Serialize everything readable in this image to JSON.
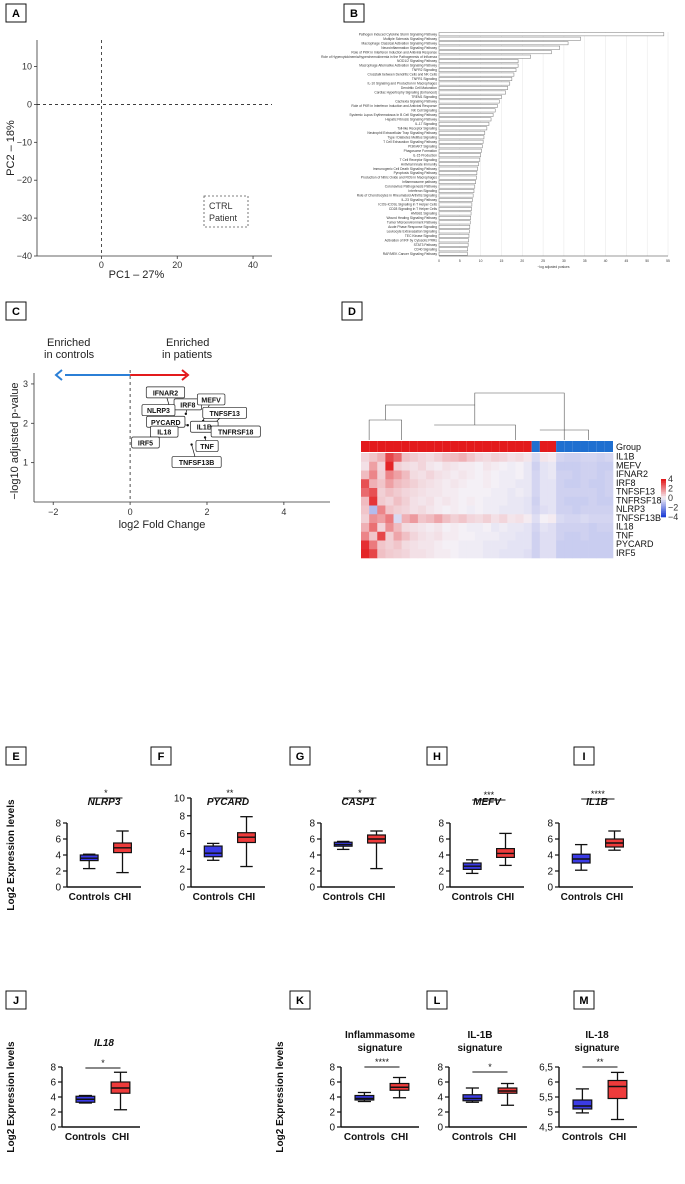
{
  "colors": {
    "control_box": "#3b3be6",
    "chi_box": "#ee3b3b",
    "heat_high": "#e31a1c",
    "heat_low": "#1f3fd6",
    "heat_mid": "#f4f0f6",
    "group_ctrl": "#1f6fd0",
    "group_patient": "#e31a1c",
    "arrow_blue": "#2b7fd6",
    "arrow_red": "#e31a1c"
  },
  "chart_data": [
    {
      "panel": "A",
      "type": "scatter",
      "xlabel": "PC1 – 27%",
      "ylabel": "PC2 – 18%",
      "xlim": [
        -17,
        45
      ],
      "ylim": [
        -40,
        17
      ],
      "xticks": [
        "0",
        "20",
        "40"
      ],
      "xtick_values": [
        0,
        20,
        40
      ],
      "yticks": [
        "10",
        "0",
        "−10",
        "−20",
        "−30",
        "−40"
      ],
      "ytick_values": [
        10,
        0,
        -10,
        -20,
        -30,
        -40
      ],
      "legend": [
        "CTRL",
        "Patient"
      ],
      "legend_position": "bottom-right",
      "points": []
    },
    {
      "panel": "B",
      "type": "bar",
      "orientation": "horizontal",
      "xlabel": "−log adjusted pvalues",
      "xlim": [
        0,
        55
      ],
      "xticks": [
        "0",
        "5",
        "10",
        "15",
        "20",
        "25",
        "30",
        "35",
        "40",
        "45",
        "50",
        "55"
      ],
      "categories": [
        "Pathogen Induced Cytokine Storm Signaling Pathway",
        "Multiple Sclerosis Signaling Pathway",
        "Macrophage Classical Activation Signaling Pathway",
        "Neuroinflammation Signaling Pathway",
        "Role of PKR in Interferon Induction and Antiviral Response",
        "Role of Hypercytokinemia/hyperchemokinemia in the Pathogenesis of Influenza",
        "NOD1/2 Signaling Pathway",
        "Macrophage Alternative Activation Signaling Pathway",
        "TNFR2 Signaling",
        "Crosstalk between Dendritic Cells and NK Cells",
        "TNFR1 Signaling",
        "IL-10 Signaling and Production in Macrophages",
        "Dendritic Cell Maturation",
        "Cardiac Hypertrophy Signaling (Enhanced)",
        "TREM1 Signaling",
        "Cachexia Signaling Pathway",
        "Role of PKR in Interferon Induction and Antiviral Response",
        "NK Cell Signaling",
        "Systemic Lupus Erythematosus In B Cell Signaling Pathway",
        "Hepatic Fibrosis Signaling Pathway",
        "IL-17 Signaling",
        "Toll-like Receptor Signaling",
        "Neutrophil Extracellular Trap Signaling Pathway",
        "Type I Diabetes Mellitus Signaling",
        "T Cell Exhaustion Signaling Pathway",
        "PI3K/AKT Signaling",
        "Phagosome Formation",
        "IL-15 Production",
        "T Cell Receptor Signaling",
        "Antiviral Innate Immunity",
        "Immunogenic Cell Death Signaling Pathway",
        "Pyroptosis Signaling Pathway",
        "Production of Nitric Oxide and ROS in Macrophages",
        "Inflammasome pathway",
        "Coronavirus Pathogenesis Pathway",
        "Interferon Signaling",
        "Role of Chondrocytes in Rheumatoid Arthritis Signaling",
        "IL-23 Signaling Pathway",
        "ICOS-ICOSL Signaling in T Helper Cells",
        "CD28 Signaling in T Helper Cells",
        "HMGB1 Signaling",
        "Wound Healing Signaling Pathway",
        "Tumor Microenvironment Pathway",
        "Acute Phase Response Signaling",
        "Leukocyte Extravasation Signaling",
        "TEC Kinase Signaling",
        "Activation of IRF by Cytosolic PRRs",
        "STAT3 Pathway",
        "CD40 Signaling",
        "RAF/MEK Cancer Signaling Pathway"
      ],
      "values": [
        54,
        34,
        31,
        29,
        27,
        22,
        19,
        19,
        18.5,
        18,
        17.5,
        17,
        16.5,
        16,
        15,
        14.5,
        14,
        13.5,
        13,
        12.5,
        12,
        11.5,
        11,
        10.8,
        10.6,
        10.4,
        10.2,
        10,
        9.8,
        9.5,
        9.3,
        9.1,
        9,
        8.8,
        8.6,
        8.4,
        8.2,
        8,
        7.9,
        7.8,
        7.7,
        7.6,
        7.5,
        7.4,
        7.3,
        7.2,
        7.1,
        7,
        6.9,
        6.8
      ]
    },
    {
      "panel": "C",
      "type": "scatter",
      "xlabel": "log2 Fold Change",
      "ylabel": "−log10 adjusted p-value",
      "xlim": [
        -2.5,
        5.2
      ],
      "ylim": [
        0,
        3.1
      ],
      "xticks": [
        "−2",
        "0",
        "2",
        "4"
      ],
      "xtick_values": [
        -2,
        0,
        2,
        4
      ],
      "yticks": [
        "1",
        "2",
        "3"
      ],
      "ytick_values": [
        1,
        2,
        3
      ],
      "annotation_left": "Enriched in controls",
      "annotation_right": "Enriched in patients",
      "points": [
        {
          "label": "IFNAR2",
          "x": 1.05,
          "y": 2.34
        },
        {
          "label": "IRF8",
          "x": 1.45,
          "y": 2.24
        },
        {
          "label": "MEFV",
          "x": 1.9,
          "y": 2.06
        },
        {
          "label": "NLRP3",
          "x": 1.05,
          "y": 2.12
        },
        {
          "label": "TNFSF13",
          "x": 2.2,
          "y": 2.0
        },
        {
          "label": "PYCARD",
          "x": 1.5,
          "y": 1.95
        },
        {
          "label": "IL1B",
          "x": 1.8,
          "y": 1.9
        },
        {
          "label": "TNFRSF18",
          "x": 2.8,
          "y": 1.88
        },
        {
          "label": "IL18",
          "x": 1.2,
          "y": 1.7
        },
        {
          "label": "TNF",
          "x": 1.95,
          "y": 1.64
        },
        {
          "label": "IRF5",
          "x": 0.4,
          "y": 1.5
        },
        {
          "label": "TNFSF13B",
          "x": 1.6,
          "y": 1.46
        }
      ]
    },
    {
      "panel": "D",
      "type": "heatmap",
      "rows": [
        "IL1B",
        "MEFV",
        "IFNAR2",
        "IRF8",
        "TNFSF13",
        "TNFRSF18",
        "NLRP3",
        "TNFSF13B",
        "IL18",
        "TNF",
        "PYCARD",
        "IRF5"
      ],
      "group_label": "Group",
      "groups": [
        "Patient",
        "Patient",
        "Patient",
        "Patient",
        "Patient",
        "Patient",
        "Patient",
        "Patient",
        "Patient",
        "Patient",
        "Patient",
        "Patient",
        "Patient",
        "Patient",
        "Patient",
        "Patient",
        "Patient",
        "Patient",
        "Patient",
        "Patient",
        "Patient",
        "CTRL",
        "Patient",
        "Patient",
        "CTRL",
        "CTRL",
        "CTRL",
        "CTRL",
        "CTRL",
        "CTRL",
        "CTRL"
      ],
      "scale_ticks": [
        "4",
        "2",
        "0",
        "−2",
        "−4"
      ],
      "scale_values": [
        4,
        2,
        0,
        -2,
        -4
      ],
      "values": [
        [
          0.5,
          0.8,
          1.2,
          3.2,
          2.5,
          0.9,
          0.7,
          0.5,
          0.4,
          0.6,
          0.9,
          1.0,
          1.2,
          0.8,
          0.5,
          0.4,
          0.6,
          0.5,
          0.3,
          0.4,
          0.2,
          -0.5,
          0.2,
          0.1,
          -0.6,
          -0.7,
          -0.7,
          -0.6,
          -0.6,
          -0.7,
          -0.6
        ],
        [
          0.3,
          1.5,
          0.5,
          3.8,
          0.6,
          0.4,
          0.3,
          0.5,
          0.2,
          0.1,
          0.3,
          0.2,
          0.1,
          0.1,
          0.0,
          0.2,
          0.1,
          0.0,
          -0.1,
          0.0,
          -0.2,
          -0.7,
          -0.3,
          -0.2,
          -0.8,
          -0.8,
          -0.8,
          -0.7,
          -0.7,
          -0.8,
          -0.8
        ],
        [
          1.0,
          2.0,
          0.6,
          2.0,
          1.5,
          1.0,
          0.4,
          0.3,
          0.5,
          0.3,
          0.2,
          0.1,
          0.2,
          0.1,
          0.0,
          0.1,
          0.0,
          -0.1,
          -0.1,
          0.0,
          -0.2,
          -0.6,
          -0.3,
          -0.2,
          -0.7,
          -0.7,
          -0.8,
          -0.7,
          -0.7,
          -0.8,
          -0.7
        ],
        [
          3.0,
          1.2,
          0.8,
          1.5,
          1.0,
          0.8,
          0.6,
          0.4,
          0.3,
          0.2,
          0.1,
          0.2,
          0.1,
          0.0,
          0.0,
          0.1,
          0.0,
          -0.1,
          -0.1,
          -0.2,
          -0.2,
          -0.6,
          -0.3,
          -0.3,
          -0.7,
          -0.8,
          -0.8,
          -0.7,
          -0.8,
          -0.8,
          -0.7
        ],
        [
          2.5,
          3.0,
          0.6,
          0.9,
          0.7,
          0.5,
          0.4,
          0.3,
          0.2,
          0.2,
          0.1,
          0.1,
          0.0,
          0.0,
          0.0,
          0.0,
          -0.1,
          -0.1,
          -0.2,
          -0.1,
          -0.2,
          -0.6,
          -0.3,
          -0.3,
          -0.7,
          -0.7,
          -0.7,
          -0.7,
          -0.7,
          -0.8,
          -0.7
        ],
        [
          1.0,
          3.5,
          0.7,
          0.5,
          0.9,
          0.6,
          0.3,
          0.2,
          0.3,
          0.1,
          0.2,
          0.1,
          0.0,
          0.1,
          0.0,
          -0.1,
          -0.1,
          -0.1,
          -0.2,
          -0.2,
          -0.3,
          -0.7,
          -0.3,
          -0.3,
          -0.7,
          -0.8,
          -0.8,
          -0.8,
          -0.7,
          -0.8,
          -0.8
        ],
        [
          0.8,
          -1.2,
          2.0,
          0.8,
          0.6,
          0.5,
          0.3,
          0.4,
          0.2,
          0.1,
          0.0,
          0.1,
          0.0,
          -0.1,
          0.0,
          -0.1,
          -0.1,
          -0.2,
          -0.2,
          -0.2,
          -0.3,
          -0.6,
          -0.4,
          -0.3,
          -0.7,
          -0.7,
          -0.8,
          -0.7,
          -0.7,
          -0.7,
          -0.7
        ],
        [
          0.6,
          1.8,
          1.5,
          2.2,
          -0.5,
          1.2,
          1.6,
          0.8,
          1.0,
          1.4,
          0.9,
          0.6,
          0.8,
          0.5,
          0.4,
          0.6,
          0.3,
          0.5,
          0.2,
          0.3,
          0.1,
          -0.4,
          0.0,
          0.1,
          -0.5,
          -0.6,
          -0.6,
          -0.5,
          -0.6,
          -0.6,
          -0.6
        ],
        [
          1.2,
          2.4,
          0.5,
          1.8,
          1.0,
          0.4,
          0.3,
          0.2,
          0.1,
          0.2,
          0.0,
          0.1,
          0.0,
          -0.1,
          -0.1,
          0.0,
          -0.2,
          -0.1,
          -0.2,
          -0.2,
          -0.3,
          -0.6,
          -0.3,
          -0.4,
          -0.7,
          -0.7,
          -0.7,
          -0.7,
          -0.8,
          -0.7,
          -0.7
        ],
        [
          2.0,
          0.8,
          3.2,
          0.6,
          1.4,
          0.9,
          0.5,
          0.3,
          0.2,
          0.3,
          0.1,
          0.1,
          0.0,
          0.0,
          -0.1,
          -0.1,
          -0.1,
          -0.2,
          -0.2,
          -0.3,
          -0.3,
          -0.7,
          -0.4,
          -0.4,
          -0.7,
          -0.8,
          -0.8,
          -0.7,
          -0.8,
          -0.8,
          -0.8
        ],
        [
          3.6,
          2.2,
          0.8,
          0.6,
          0.8,
          0.4,
          0.3,
          0.2,
          0.2,
          0.1,
          0.0,
          0.0,
          -0.1,
          -0.1,
          -0.1,
          -0.2,
          -0.2,
          -0.2,
          -0.3,
          -0.3,
          -0.3,
          -0.7,
          -0.4,
          -0.4,
          -0.8,
          -0.8,
          -0.8,
          -0.8,
          -0.8,
          -0.8,
          -0.8
        ],
        [
          3.8,
          3.2,
          0.9,
          0.7,
          0.6,
          0.5,
          0.3,
          0.3,
          0.2,
          0.1,
          0.1,
          0.0,
          -0.1,
          -0.1,
          -0.1,
          -0.2,
          -0.2,
          -0.3,
          -0.3,
          -0.3,
          -0.4,
          -0.7,
          -0.4,
          -0.4,
          -0.8,
          -0.8,
          -0.8,
          -0.8,
          -0.8,
          -0.8,
          -0.8
        ]
      ]
    },
    {
      "panel": "E",
      "type": "box",
      "title": "NLRP3",
      "ylabel": "Log2 Expression levels",
      "categories": [
        "Controls",
        "CHI"
      ],
      "ylim": [
        0,
        8
      ],
      "yticks": [
        "0",
        "2",
        "4",
        "6",
        "8"
      ],
      "ytick_values": [
        0,
        2,
        4,
        6,
        8
      ],
      "boxes": [
        {
          "min": 2.3,
          "q1": 3.3,
          "median": 3.6,
          "q3": 4.0,
          "max": 4.1
        },
        {
          "min": 1.8,
          "q1": 4.3,
          "median": 4.9,
          "q3": 5.5,
          "max": 7.0
        }
      ],
      "significance": "*"
    },
    {
      "panel": "F",
      "type": "box",
      "title": "PYCARD",
      "ylabel": "",
      "categories": [
        "Controls",
        "CHI"
      ],
      "ylim": [
        0,
        10
      ],
      "yticks": [
        "0",
        "2",
        "4",
        "6",
        "8",
        "10"
      ],
      "ytick_values": [
        0,
        2,
        4,
        6,
        8,
        10
      ],
      "boxes": [
        {
          "min": 3.0,
          "q1": 3.4,
          "median": 3.8,
          "q3": 4.6,
          "max": 4.9
        },
        {
          "min": 2.3,
          "q1": 5.0,
          "median": 5.6,
          "q3": 6.1,
          "max": 7.9
        }
      ],
      "significance": "**"
    },
    {
      "panel": "G",
      "type": "box",
      "title": "CASP1",
      "ylabel": "",
      "categories": [
        "Controls",
        "CHI"
      ],
      "ylim": [
        0,
        8
      ],
      "yticks": [
        "0",
        "2",
        "4",
        "6",
        "8"
      ],
      "ytick_values": [
        0,
        2,
        4,
        6,
        8
      ],
      "boxes": [
        {
          "min": 4.7,
          "q1": 5.1,
          "median": 5.3,
          "q3": 5.6,
          "max": 5.7
        },
        {
          "min": 2.3,
          "q1": 5.5,
          "median": 6.0,
          "q3": 6.5,
          "max": 7.0
        }
      ],
      "significance": "*"
    },
    {
      "panel": "H",
      "type": "box",
      "title": "MEFV",
      "ylabel": "",
      "categories": [
        "Controls",
        "CHI"
      ],
      "ylim": [
        0,
        8
      ],
      "yticks": [
        "0",
        "2",
        "4",
        "6",
        "8"
      ],
      "ytick_values": [
        0,
        2,
        4,
        6,
        8
      ],
      "boxes": [
        {
          "min": 1.7,
          "q1": 2.2,
          "median": 2.6,
          "q3": 3.0,
          "max": 3.4
        },
        {
          "min": 2.7,
          "q1": 3.7,
          "median": 4.2,
          "q3": 4.8,
          "max": 6.7
        }
      ],
      "significance": "***"
    },
    {
      "panel": "I",
      "type": "box",
      "title": "IL1B",
      "ylabel": "",
      "categories": [
        "Controls",
        "CHI"
      ],
      "ylim": [
        0,
        8
      ],
      "yticks": [
        "0",
        "2",
        "4",
        "6",
        "8"
      ],
      "ytick_values": [
        0,
        2,
        4,
        6,
        8
      ],
      "boxes": [
        {
          "min": 2.1,
          "q1": 3.0,
          "median": 3.5,
          "q3": 4.1,
          "max": 5.3
        },
        {
          "min": 4.6,
          "q1": 5.0,
          "median": 5.5,
          "q3": 6.0,
          "max": 7.0
        }
      ],
      "significance": "****"
    },
    {
      "panel": "J",
      "type": "box",
      "title": "IL18",
      "ylabel": "Log2 Expression levels",
      "categories": [
        "Controls",
        "CHI"
      ],
      "ylim": [
        0,
        8
      ],
      "yticks": [
        "0",
        "2",
        "4",
        "6",
        "8"
      ],
      "ytick_values": [
        0,
        2,
        4,
        6,
        8
      ],
      "boxes": [
        {
          "min": 3.2,
          "q1": 3.3,
          "median": 3.7,
          "q3": 4.1,
          "max": 4.2
        },
        {
          "min": 2.3,
          "q1": 4.5,
          "median": 5.2,
          "q3": 6.0,
          "max": 7.3
        }
      ],
      "significance": "*"
    },
    {
      "panel": "K",
      "type": "box",
      "title": "Inflammasome signature",
      "ylabel": "Log2 Expression levels",
      "categories": [
        "Controls",
        "CHI"
      ],
      "ylim": [
        0,
        8
      ],
      "yticks": [
        "0",
        "2",
        "4",
        "6",
        "8"
      ],
      "ytick_values": [
        0,
        2,
        4,
        6,
        8
      ],
      "boxes": [
        {
          "min": 3.4,
          "q1": 3.6,
          "median": 3.8,
          "q3": 4.2,
          "max": 4.6
        },
        {
          "min": 3.9,
          "q1": 4.9,
          "median": 5.3,
          "q3": 5.8,
          "max": 6.6
        }
      ],
      "significance": "****"
    },
    {
      "panel": "L",
      "type": "box",
      "title": "IL-1B signature",
      "ylabel": "",
      "categories": [
        "Controls",
        "CHI"
      ],
      "ylim": [
        0,
        8
      ],
      "yticks": [
        "0",
        "2",
        "4",
        "6",
        "8"
      ],
      "ytick_values": [
        0,
        2,
        4,
        6,
        8
      ],
      "boxes": [
        {
          "min": 3.3,
          "q1": 3.5,
          "median": 3.8,
          "q3": 4.3,
          "max": 5.2
        },
        {
          "min": 2.9,
          "q1": 4.5,
          "median": 4.8,
          "q3": 5.2,
          "max": 5.8
        }
      ],
      "significance": "*"
    },
    {
      "panel": "M",
      "type": "box",
      "title": "IL-18 signature",
      "ylabel": "",
      "categories": [
        "Controls",
        "CHI"
      ],
      "ylim": [
        4.5,
        6.5
      ],
      "yticks": [
        "4,5",
        "5",
        "5,5",
        "6",
        "6,5"
      ],
      "ytick_values": [
        4.5,
        5,
        5.5,
        6,
        6.5
      ],
      "boxes": [
        {
          "min": 4.97,
          "q1": 5.1,
          "median": 5.2,
          "q3": 5.4,
          "max": 5.77
        },
        {
          "min": 4.75,
          "q1": 5.45,
          "median": 5.85,
          "q3": 6.05,
          "max": 6.32
        }
      ],
      "significance": "**"
    }
  ]
}
